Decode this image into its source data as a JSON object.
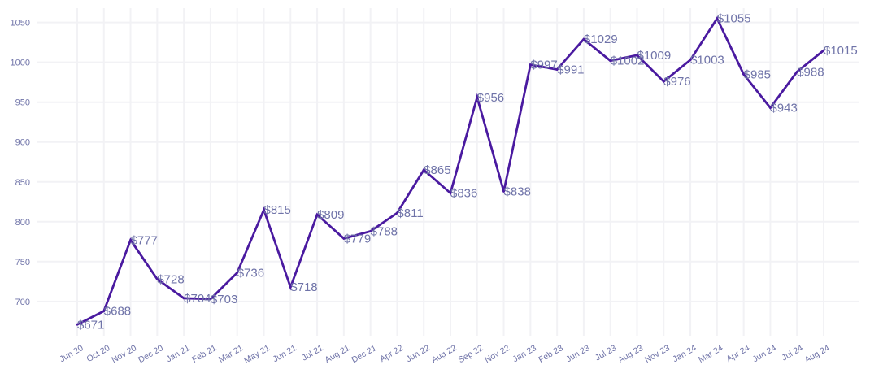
{
  "chart_data": {
    "type": "line",
    "title": "",
    "xlabel": "",
    "ylabel": "",
    "categories": [
      "Jun 20",
      "Oct 20",
      "Nov 20",
      "Dec 20",
      "Jan 21",
      "Feb 21",
      "Mar 21",
      "May 21",
      "Jun 21",
      "Jul 21",
      "Aug 21",
      "Dec 21",
      "Apr 22",
      "Jun 22",
      "Aug 22",
      "Sep 22",
      "Nov 22",
      "Jan 23",
      "Feb 23",
      "Jun 23",
      "Jul 23",
      "Aug 23",
      "Nov 23",
      "Jan 24",
      "Mar 24",
      "Apr 24",
      "Jun 24",
      "Jul 24",
      "Aug 24"
    ],
    "values": [
      671,
      688,
      777,
      728,
      704,
      703,
      736,
      815,
      718,
      809,
      779,
      788,
      811,
      865,
      836,
      956,
      838,
      997,
      991,
      1029,
      1002,
      1009,
      976,
      1003,
      1055,
      985,
      943,
      988,
      1015
    ],
    "data_labels": [
      "$671",
      "$688",
      "$777",
      "$728",
      "$704",
      "$703",
      "$736",
      "$815",
      "$718",
      "$809",
      "$779",
      "$788",
      "$811",
      "$865",
      "$836",
      "$956",
      "$838",
      "$997",
      "$991",
      "$1029",
      "$1002",
      "$1009",
      "$976",
      "$1003",
      "$1055",
      "$985",
      "$943",
      "$988",
      "$1015"
    ],
    "yticks": [
      700,
      750,
      800,
      850,
      900,
      950,
      1000,
      1050
    ],
    "ylim": [
      657,
      1068
    ],
    "grid": true,
    "legend": "none",
    "colors": {
      "line": "#4a1aa0",
      "labels": "#6f73a8",
      "grid": "#f2f2f5"
    }
  }
}
